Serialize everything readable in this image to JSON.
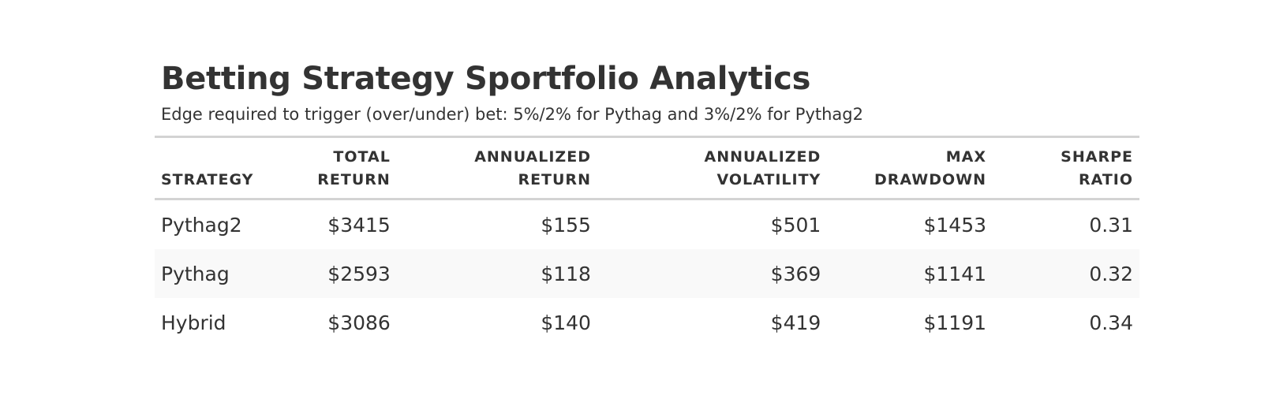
{
  "chart_data": {
    "type": "table",
    "title": "Betting Strategy Sportfolio Analytics",
    "subtitle": "Edge required to trigger (over/under) bet: 5%/2% for Pythag and 3%/2% for Pythag2",
    "columns": [
      {
        "key": "strategy",
        "label_line1": "",
        "label_line2": "STRATEGY"
      },
      {
        "key": "total_return",
        "label_line1": "TOTAL",
        "label_line2": "RETURN"
      },
      {
        "key": "annualized_return",
        "label_line1": "ANNUALIZED",
        "label_line2": "RETURN"
      },
      {
        "key": "annualized_volatility",
        "label_line1": "ANNUALIZED",
        "label_line2": "VOLATILITY"
      },
      {
        "key": "max_drawdown",
        "label_line1": "MAX",
        "label_line2": "DRAWDOWN"
      },
      {
        "key": "sharpe_ratio",
        "label_line1": "SHARPE",
        "label_line2": "RATIO"
      }
    ],
    "rows": [
      {
        "strategy": "Pythag2",
        "total_return": "$3415",
        "annualized_return": "$155",
        "annualized_volatility": "$501",
        "max_drawdown": "$1453",
        "sharpe_ratio": "0.31"
      },
      {
        "strategy": "Pythag",
        "total_return": "$2593",
        "annualized_return": "$118",
        "annualized_volatility": "$369",
        "max_drawdown": "$1141",
        "sharpe_ratio": "0.32"
      },
      {
        "strategy": "Hybrid",
        "total_return": "$3086",
        "annualized_return": "$140",
        "annualized_volatility": "$419",
        "max_drawdown": "$1191",
        "sharpe_ratio": "0.34"
      }
    ]
  }
}
